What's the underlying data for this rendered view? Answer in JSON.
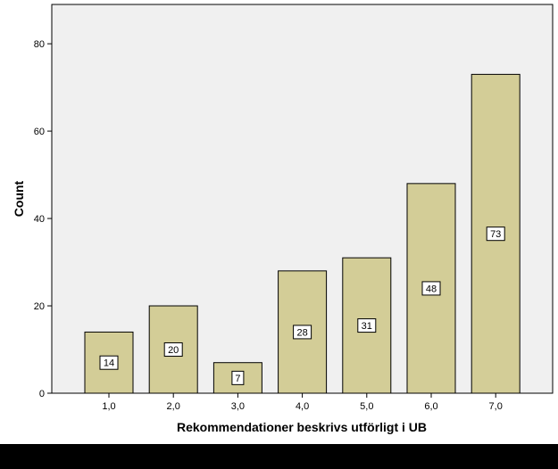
{
  "chart_data": {
    "type": "bar",
    "categories": [
      "1,0",
      "2,0",
      "3,0",
      "4,0",
      "5,0",
      "6,0",
      "7,0"
    ],
    "values": [
      14,
      20,
      7,
      28,
      31,
      48,
      73
    ],
    "data_labels": [
      "14",
      "20",
      "7",
      "28",
      "31",
      "48",
      "73"
    ],
    "xlabel": "Rekommendationer beskrivs utförligt i UB",
    "ylabel": "Count",
    "ylim": [
      0,
      89
    ],
    "yticks": [
      0,
      20,
      40,
      60,
      80
    ],
    "ytick_labels": [
      "0",
      "20",
      "40",
      "60",
      "80"
    ],
    "grid": false,
    "colors": {
      "bar_fill": "#d3cd97",
      "bar_stroke": "#000000",
      "plot_background": "#f0f0f0",
      "axis": "#000000",
      "bottom_band": "#000000"
    }
  }
}
